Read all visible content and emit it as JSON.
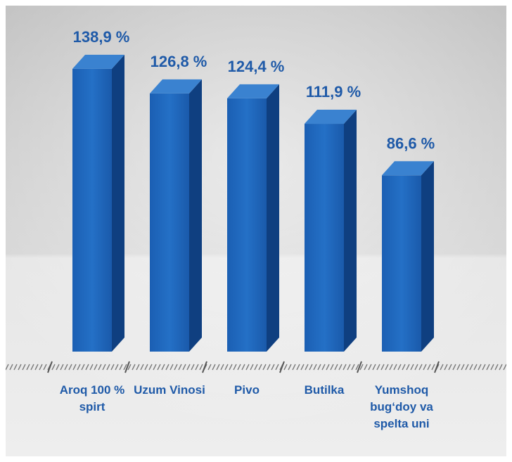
{
  "chart_data": {
    "type": "bar",
    "categories": [
      [
        "Aroq 100 %",
        "spirt"
      ],
      [
        "Uzum Vinosi"
      ],
      [
        "Pivo"
      ],
      [
        "Butilka"
      ],
      [
        "Yumshoq",
        "bug‘doy va",
        "spelta uni"
      ]
    ],
    "values": [
      138.9,
      126.8,
      124.4,
      111.9,
      86.6
    ],
    "value_labels": [
      "138,9 %",
      "126,8 %",
      "124,4 %",
      "111,9 %",
      "86,6  %"
    ],
    "title": "",
    "xlabel": "",
    "ylabel": "",
    "grid": false,
    "style": "3d-bar",
    "colors": {
      "bar_front": "#1c63b8",
      "bar_side": "#0f3f80",
      "bar_top": "#3a82d0",
      "label": "#1f5aa8",
      "background_top": "#c8c8c8",
      "background_bottom": "#eaeaea"
    }
  }
}
